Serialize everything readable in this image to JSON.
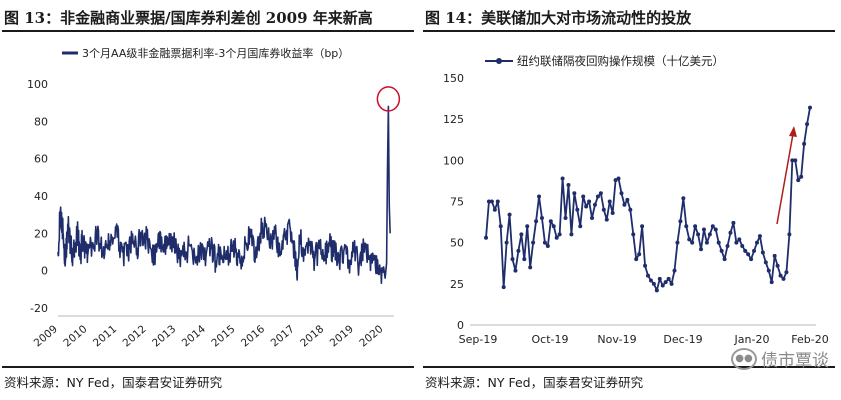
{
  "left": {
    "title": "图 13：非金融商业票据/国库券利差创 2009 年来新高",
    "source": "资料来源：NY Fed，国泰君安证券研究"
  },
  "right": {
    "title": "图 14：美联储加大对市场流动性的投放",
    "source": "资料来源：NY Fed，国泰君安证券研究"
  },
  "watermark": {
    "text": "债市覃谈",
    "icon": "wechat-icon"
  },
  "chart_data": [
    {
      "type": "line",
      "legend": "3个月AA级非金融票据利率-3个月国库券收益率（bp）",
      "ylim": [
        -20,
        100
      ],
      "yticks": [
        "-20",
        "0",
        "20",
        "40",
        "60",
        "80",
        "100"
      ],
      "xticks": [
        "2009",
        "2010",
        "2011",
        "2012",
        "2013",
        "2014",
        "2015",
        "2016",
        "2017",
        "2018",
        "2019",
        "2020"
      ],
      "series": [
        {
          "name": "3个月AA级非金融票据利率-3个月国库券收益率（bp）",
          "x": [
            2009.0,
            2009.08,
            2009.17,
            2009.25,
            2009.33,
            2009.42,
            2009.5,
            2009.58,
            2009.67,
            2009.75,
            2009.83,
            2009.92,
            2010.0,
            2010.17,
            2010.33,
            2010.5,
            2010.67,
            2010.83,
            2011.0,
            2011.17,
            2011.33,
            2011.5,
            2011.67,
            2011.83,
            2012.0,
            2012.17,
            2012.33,
            2012.5,
            2012.67,
            2012.83,
            2013.0,
            2013.17,
            2013.33,
            2013.5,
            2013.67,
            2013.83,
            2014.0,
            2014.17,
            2014.33,
            2014.5,
            2014.67,
            2014.83,
            2015.0,
            2015.17,
            2015.33,
            2015.5,
            2015.67,
            2015.83,
            2016.0,
            2016.17,
            2016.33,
            2016.5,
            2016.67,
            2016.83,
            2017.0,
            2017.08,
            2017.17,
            2017.33,
            2017.5,
            2017.67,
            2017.83,
            2018.0,
            2018.17,
            2018.33,
            2018.5,
            2018.67,
            2018.83,
            2019.0,
            2019.17,
            2019.33,
            2019.5,
            2019.67,
            2019.83,
            2020.0,
            2020.05,
            2020.1,
            2020.13,
            2020.16,
            2020.19,
            2020.22
          ],
          "values": [
            10,
            32,
            20,
            5,
            25,
            15,
            8,
            12,
            22,
            6,
            18,
            10,
            8,
            15,
            20,
            10,
            12,
            18,
            18,
            10,
            8,
            15,
            12,
            20,
            17,
            8,
            10,
            18,
            12,
            15,
            12,
            8,
            10,
            14,
            6,
            12,
            8,
            12,
            5,
            10,
            6,
            12,
            10,
            6,
            14,
            18,
            8,
            20,
            26,
            12,
            20,
            8,
            18,
            24,
            10,
            -5,
            18,
            10,
            15,
            6,
            12,
            8,
            14,
            10,
            5,
            12,
            4,
            10,
            3,
            12,
            6,
            8,
            -2,
            2,
            -4,
            4,
            55,
            88,
            35,
            20
          ]
        }
      ]
    },
    {
      "type": "line",
      "legend": "纽约联储隔夜回购操作规模（十亿美元）",
      "ylim": [
        0,
        150
      ],
      "yticks": [
        "0",
        "25",
        "50",
        "75",
        "100",
        "125",
        "150"
      ],
      "xticks": [
        "Sep-19",
        "Oct-19",
        "Nov-19",
        "Dec-19",
        "Jan-20",
        "Feb-20"
      ],
      "series": [
        {
          "name": "纽约联储隔夜回购操作规模（十亿美元）",
          "values": [
            53,
            75,
            75,
            70,
            75,
            60,
            23,
            50,
            67,
            40,
            33,
            45,
            55,
            40,
            60,
            35,
            50,
            63,
            78,
            65,
            50,
            48,
            63,
            60,
            53,
            55,
            89,
            65,
            85,
            55,
            80,
            70,
            60,
            78,
            72,
            75,
            65,
            73,
            78,
            80,
            70,
            64,
            75,
            68,
            88,
            89,
            80,
            73,
            76,
            70,
            55,
            40,
            43,
            60,
            36,
            30,
            27,
            25,
            21,
            28,
            24,
            26,
            28,
            25,
            33,
            50,
            63,
            77,
            60,
            52,
            50,
            60,
            55,
            46,
            58,
            50,
            55,
            60,
            58,
            50,
            45,
            40,
            48,
            56,
            62,
            50,
            52,
            48,
            45,
            43,
            40,
            45,
            50,
            54,
            44,
            38,
            33,
            26,
            42,
            36,
            30,
            28,
            32,
            55,
            100,
            100,
            88,
            90,
            110,
            122,
            132
          ]
        }
      ]
    }
  ]
}
